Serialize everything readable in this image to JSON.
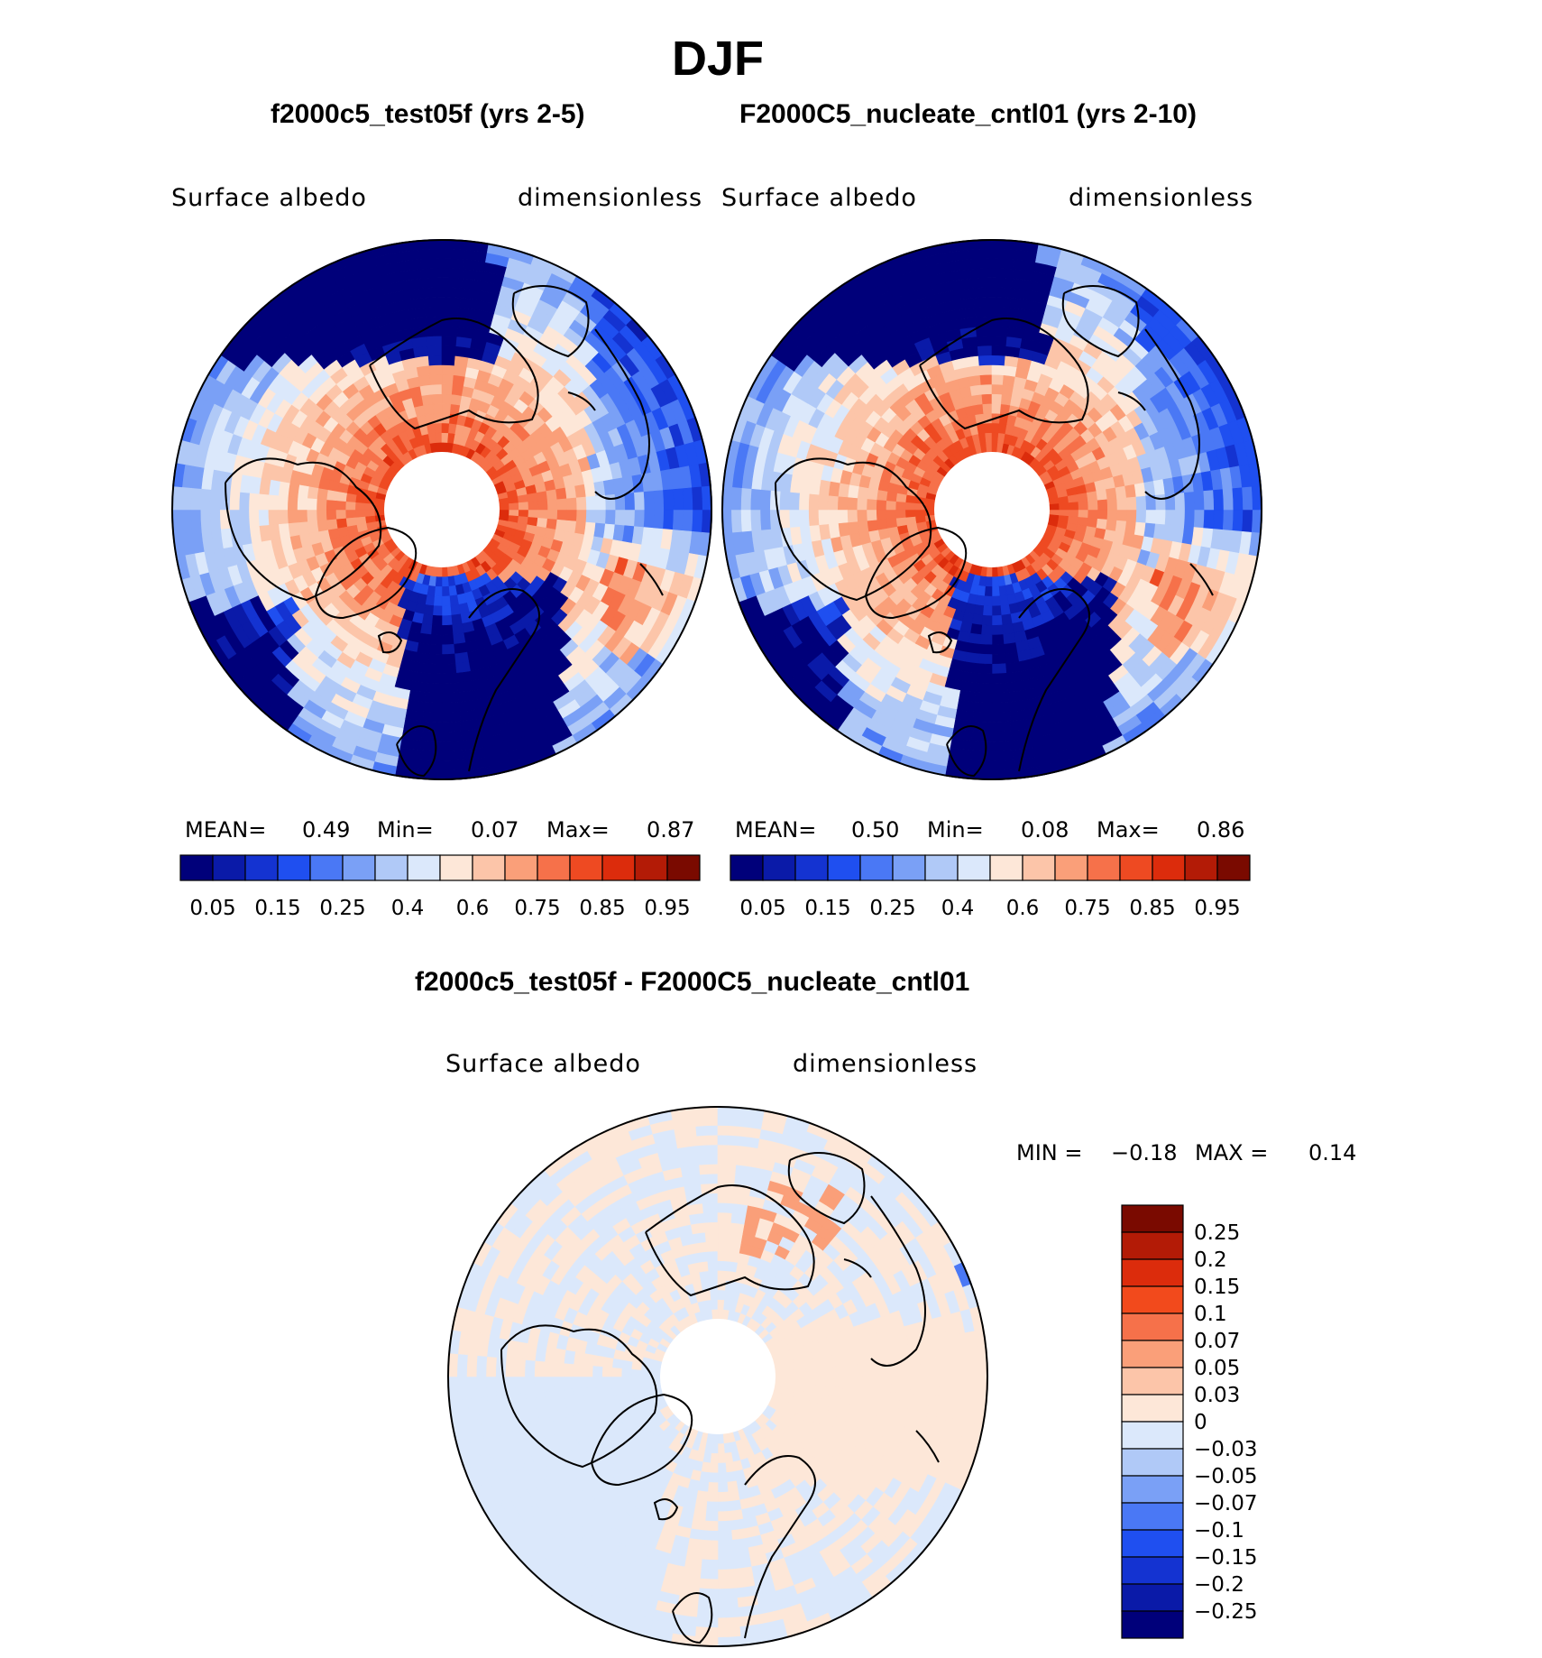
{
  "header": {
    "title": "DJF"
  },
  "chart_data": [
    {
      "type": "heatmap",
      "title": "f2000c5_test05f (yrs 2-5)",
      "variable": "Surface albedo",
      "units": "dimensionless",
      "stats": {
        "mean_label": "MEAN=",
        "mean": "0.49",
        "min_label": "Min=",
        "min": "0.07",
        "max_label": "Max=",
        "max": "0.87"
      },
      "colorbar_levels": [
        "0.05",
        "0.1",
        "0.15",
        "0.2",
        "0.25",
        "0.3",
        "0.4",
        "0.5",
        "0.6",
        "0.7",
        "0.75",
        "0.8",
        "0.85",
        "0.9",
        "0.95"
      ],
      "colorbar_tick_labels": [
        "0.05",
        "0.15",
        "0.25",
        "0.4",
        "0.6",
        "0.75",
        "0.85",
        "0.95"
      ],
      "colorbar_colors": [
        "#00007a",
        "#0a1aa8",
        "#1433d1",
        "#1f4ff0",
        "#4a78f5",
        "#7aa0f6",
        "#b0c9f7",
        "#dbe8fb",
        "#fde7d8",
        "#fcc5a9",
        "#fa9f79",
        "#f6714a",
        "#ee4a22",
        "#dc2c0c",
        "#b31b06",
        "#7a0a00"
      ]
    },
    {
      "type": "heatmap",
      "title": "F2000C5_nucleate_cntl01 (yrs 2-10)",
      "variable": "Surface albedo",
      "units": "dimensionless",
      "stats": {
        "mean_label": "MEAN=",
        "mean": "0.50",
        "min_label": "Min=",
        "min": "0.08",
        "max_label": "Max=",
        "max": "0.86"
      },
      "colorbar_levels": [
        "0.05",
        "0.1",
        "0.15",
        "0.2",
        "0.25",
        "0.3",
        "0.4",
        "0.5",
        "0.6",
        "0.7",
        "0.75",
        "0.8",
        "0.85",
        "0.9",
        "0.95"
      ],
      "colorbar_tick_labels": [
        "0.05",
        "0.15",
        "0.25",
        "0.4",
        "0.6",
        "0.75",
        "0.85",
        "0.95"
      ],
      "colorbar_colors": [
        "#00007a",
        "#0a1aa8",
        "#1433d1",
        "#1f4ff0",
        "#4a78f5",
        "#7aa0f6",
        "#b0c9f7",
        "#dbe8fb",
        "#fde7d8",
        "#fcc5a9",
        "#fa9f79",
        "#f6714a",
        "#ee4a22",
        "#dc2c0c",
        "#b31b06",
        "#7a0a00"
      ]
    },
    {
      "type": "heatmap",
      "title": "f2000c5_test05f - F2000C5_nucleate_cntl01",
      "variable": "Surface albedo",
      "units": "dimensionless",
      "stats": {
        "min_label": "MIN =",
        "min": "−0.18",
        "max_label": "MAX =",
        "max": "0.14"
      },
      "colorbar_levels": [
        "0.25",
        "0.2",
        "0.15",
        "0.1",
        "0.07",
        "0.05",
        "0.03",
        "0",
        "−0.03",
        "−0.05",
        "−0.07",
        "−0.1",
        "−0.15",
        "−0.2",
        "−0.25"
      ],
      "colorbar_colors": [
        "#7a0a00",
        "#b31b06",
        "#dc2c0c",
        "#f24a1c",
        "#f6714a",
        "#fa9f79",
        "#fcc5a9",
        "#fde7d8",
        "#dbe8fb",
        "#b0c9f7",
        "#7aa0f6",
        "#4a78f5",
        "#1f4ff0",
        "#1433d1",
        "#0a1aa8",
        "#00007a"
      ]
    }
  ]
}
